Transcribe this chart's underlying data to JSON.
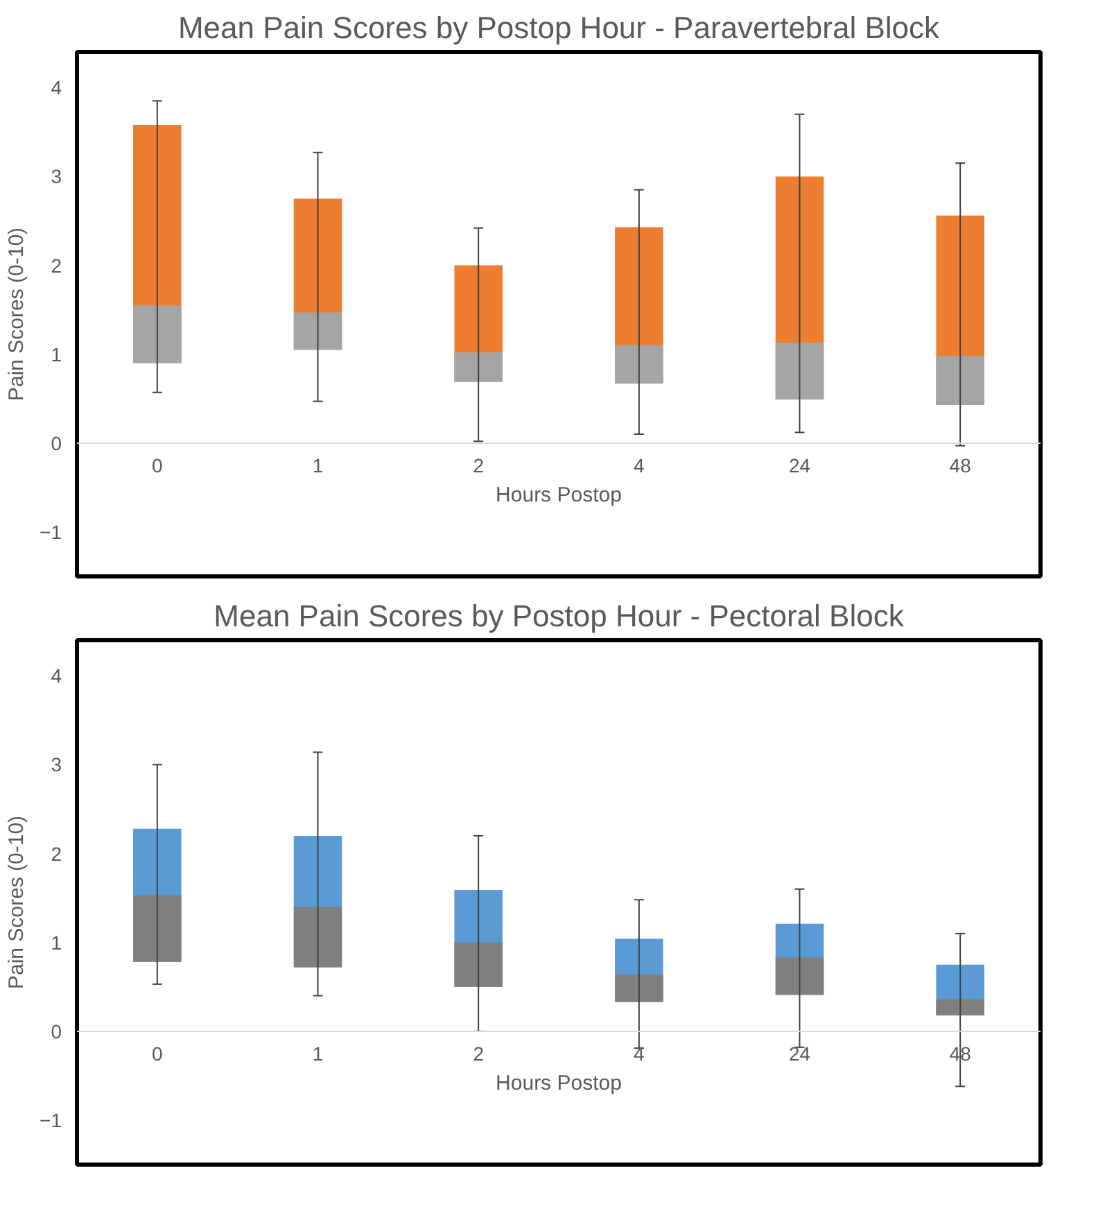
{
  "chart_data": [
    {
      "type": "box",
      "title": "Mean Pain Scores by Postop Hour - Paravertebral Block",
      "xlabel": "Hours Postop",
      "ylabel": "Pain Scores (0-10)",
      "categories": [
        "0",
        "1",
        "2",
        "4",
        "24",
        "48"
      ],
      "colors": [
        "#a5a5a5",
        "#a5a5a5",
        "#a5a5a5",
        "#a5a5a5",
        "#a5a5a5",
        "#a5a5a5"
      ],
      "ylim": [
        -1.5,
        4.4
      ],
      "yticks": [
        -1,
        0,
        1,
        2,
        3,
        4
      ],
      "series": [
        {
          "color": "#ed7d31",
          "boxes": [
            {
              "low": 0.57,
              "q1": 0.9,
              "median": 1.55,
              "q3": 3.58,
              "high": 3.85
            },
            {
              "low": 0.47,
              "q1": 1.05,
              "median": 1.47,
              "q3": 2.75,
              "high": 3.27
            },
            {
              "low": 0.02,
              "q1": 0.69,
              "median": 1.02,
              "q3": 2.0,
              "high": 2.42
            },
            {
              "low": 0.1,
              "q1": 0.67,
              "median": 1.1,
              "q3": 2.43,
              "high": 2.85
            },
            {
              "low": 0.12,
              "q1": 0.49,
              "median": 1.13,
              "q3": 3.0,
              "high": 3.7
            },
            {
              "low": -0.03,
              "q1": 0.43,
              "median": 0.98,
              "q3": 2.56,
              "high": 3.15
            }
          ]
        }
      ]
    },
    {
      "type": "box",
      "title": "Mean Pain Scores by Postop Hour - Pectoral Block",
      "xlabel": "Hours Postop",
      "ylabel": "Pain Scores (0-10)",
      "categories": [
        "0",
        "1",
        "2",
        "4",
        "24",
        "48"
      ],
      "colors": [
        "#7f7f7f",
        "#7f7f7f",
        "#7f7f7f",
        "#7f7f7f",
        "#7f7f7f",
        "#7f7f7f"
      ],
      "ylim": [
        -1.5,
        4.4
      ],
      "yticks": [
        -1,
        0,
        1,
        2,
        3,
        4
      ],
      "series": [
        {
          "color": "#5b9bd5",
          "boxes": [
            {
              "low": 0.53,
              "q1": 0.78,
              "median": 1.53,
              "q3": 2.28,
              "high": 3.0
            },
            {
              "low": 0.4,
              "q1": 0.72,
              "median": 1.4,
              "q3": 2.2,
              "high": 3.14
            },
            {
              "low": 0.0,
              "q1": 0.5,
              "median": 1.0,
              "q3": 1.59,
              "high": 2.2
            },
            {
              "low": -0.19,
              "q1": 0.33,
              "median": 0.64,
              "q3": 1.04,
              "high": 1.48
            },
            {
              "low": -0.18,
              "q1": 0.41,
              "median": 0.83,
              "q3": 1.21,
              "high": 1.6
            },
            {
              "low": -0.62,
              "q1": 0.18,
              "median": 0.36,
              "q3": 0.75,
              "high": 1.1
            }
          ]
        }
      ]
    }
  ]
}
